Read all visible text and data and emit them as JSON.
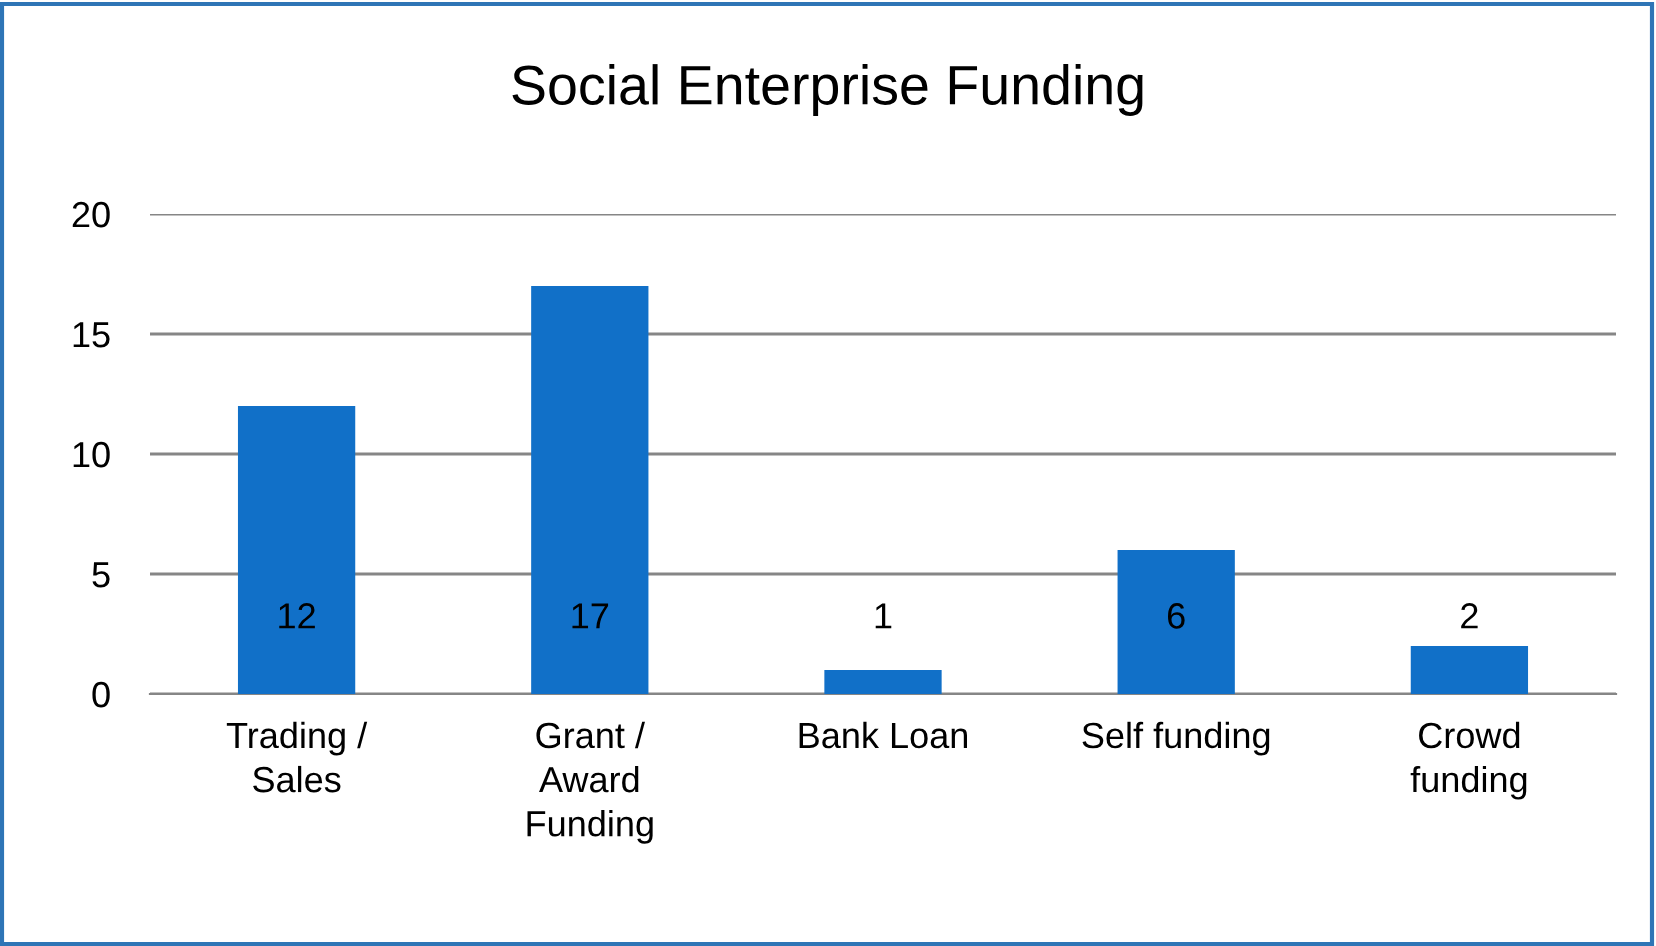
{
  "chart_data": {
    "type": "bar",
    "title": "Social Enterprise Funding",
    "categories": [
      "Trading /\nSales",
      "Grant /\nAward\nFunding",
      "Bank Loan",
      "Self funding",
      "Crowd\nfunding"
    ],
    "values": [
      12,
      17,
      1,
      6,
      2
    ],
    "color": "#1170c8",
    "ylim": [
      0,
      20
    ],
    "yticks": [
      0,
      5,
      10,
      15,
      20
    ],
    "grid": "y",
    "data_labels": true
  }
}
